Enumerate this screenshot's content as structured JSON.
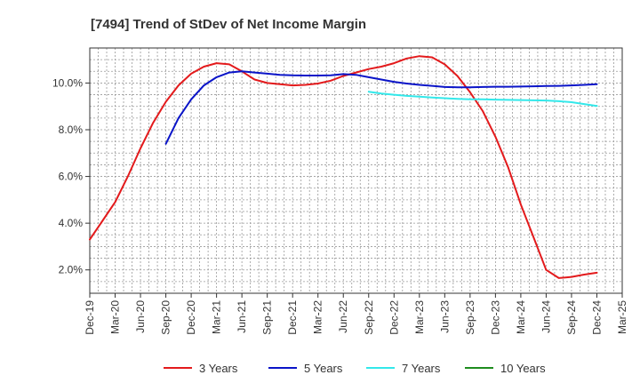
{
  "chart_data": {
    "type": "line",
    "title": "[7494]  Trend of StDev of Net Income Margin",
    "xlabel": "",
    "ylabel": "",
    "x_tick_labels": [
      "Dec-19",
      "Mar-20",
      "Jun-20",
      "Sep-20",
      "Dec-20",
      "Mar-21",
      "Jun-21",
      "Sep-21",
      "Dec-21",
      "Mar-22",
      "Jun-22",
      "Sep-22",
      "Dec-22",
      "Mar-23",
      "Jun-23",
      "Sep-23",
      "Dec-23",
      "Mar-24",
      "Jun-24",
      "Sep-24",
      "Dec-24",
      "Mar-25"
    ],
    "y_ticks": [
      2.0,
      4.0,
      6.0,
      8.0,
      10.0
    ],
    "y_tick_labels": [
      "2.0%",
      "4.0%",
      "6.0%",
      "8.0%",
      "10.0%"
    ],
    "ylim": [
      1.0,
      11.5
    ],
    "x_range_quarters": [
      0,
      21
    ],
    "grid": true,
    "legend_position": "bottom",
    "series": [
      {
        "name": "3 Years",
        "color": "#e31a1c",
        "x_quarter_index": [
          0,
          0.5,
          1,
          1.5,
          2,
          2.5,
          3,
          3.5,
          4,
          4.5,
          5,
          5.5,
          6,
          6.5,
          7,
          7.5,
          8,
          8.5,
          9,
          9.5,
          10,
          10.5,
          11,
          11.5,
          12,
          12.5,
          13,
          13.5,
          14,
          14.5,
          15,
          15.5,
          16,
          16.5,
          17,
          17.5,
          18,
          18.5,
          19,
          19.5,
          20
        ],
        "values": [
          3.3,
          4.1,
          4.9,
          6.0,
          7.2,
          8.3,
          9.2,
          9.9,
          10.4,
          10.7,
          10.85,
          10.8,
          10.5,
          10.15,
          10.0,
          9.95,
          9.9,
          9.92,
          9.98,
          10.1,
          10.3,
          10.45,
          10.6,
          10.7,
          10.85,
          11.05,
          11.15,
          11.1,
          10.8,
          10.3,
          9.6,
          8.8,
          7.7,
          6.4,
          4.8,
          3.4,
          2.0,
          1.65,
          1.7,
          1.8,
          1.88
        ]
      },
      {
        "name": "5 Years",
        "color": "#0a14c8",
        "x_quarter_index": [
          3,
          3.5,
          4,
          4.5,
          5,
          5.5,
          6,
          6.5,
          7,
          7.5,
          8,
          8.5,
          9,
          9.5,
          10,
          10.5,
          11,
          11.5,
          12,
          12.5,
          13,
          13.5,
          14,
          14.5,
          15,
          15.5,
          16,
          16.5,
          17,
          17.5,
          18,
          18.5,
          19,
          19.5,
          20
        ],
        "values": [
          7.4,
          8.5,
          9.3,
          9.9,
          10.25,
          10.45,
          10.5,
          10.45,
          10.4,
          10.35,
          10.33,
          10.32,
          10.32,
          10.33,
          10.38,
          10.35,
          10.25,
          10.15,
          10.05,
          9.98,
          9.92,
          9.88,
          9.83,
          9.82,
          9.82,
          9.83,
          9.84,
          9.84,
          9.85,
          9.86,
          9.87,
          9.88,
          9.9,
          9.92,
          9.95
        ]
      },
      {
        "name": "7 Years",
        "color": "#33e8ea",
        "x_quarter_index": [
          11,
          11.5,
          12,
          12.5,
          13,
          13.5,
          14,
          14.5,
          15,
          15.5,
          16,
          16.5,
          17,
          17.5,
          18,
          18.5,
          19,
          19.5,
          20
        ],
        "values": [
          9.63,
          9.55,
          9.5,
          9.45,
          9.42,
          9.38,
          9.35,
          9.32,
          9.3,
          9.3,
          9.29,
          9.28,
          9.27,
          9.26,
          9.25,
          9.22,
          9.18,
          9.1,
          9.02
        ]
      },
      {
        "name": "10 Years",
        "color": "#1e8c1e",
        "x_quarter_index": [],
        "values": []
      }
    ]
  }
}
